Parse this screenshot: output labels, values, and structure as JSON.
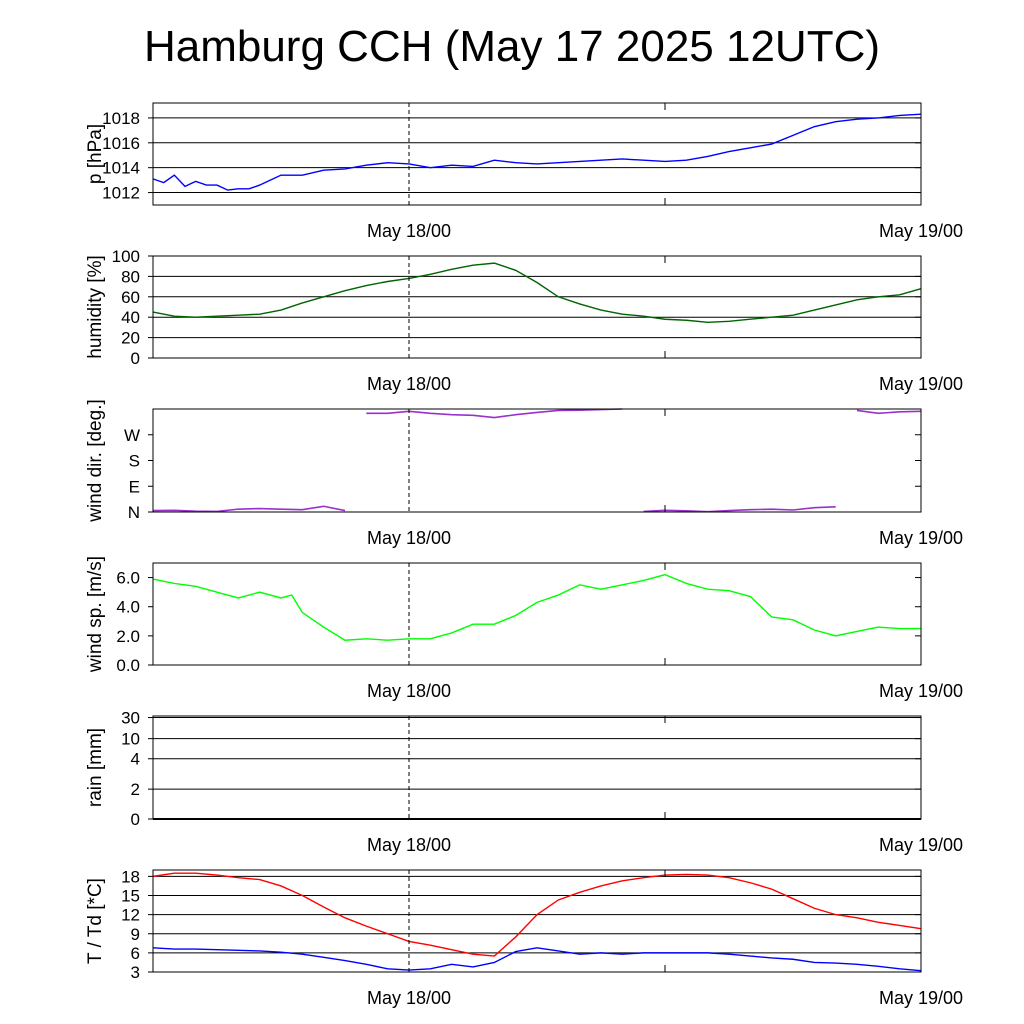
{
  "title": "Hamburg CCH (May 17 2025 12UTC)",
  "chart_data": [
    {
      "type": "line",
      "ylabel": "p [hPa]",
      "x_ticks": [
        "May 18/00",
        "May 19/00"
      ],
      "ylim": [
        1011,
        1019.2
      ],
      "y_ticks": [
        1012,
        1014,
        1016,
        1018
      ],
      "y_tick_labels": [
        "1012",
        "1014",
        "1016",
        "1018"
      ],
      "grid": "horizontal",
      "series": [
        {
          "color": "#0000ff",
          "x": [
            0,
            0.5,
            1,
            1.5,
            2,
            2.5,
            3,
            3.5,
            4,
            4.5,
            5,
            5.5,
            6,
            7,
            8,
            9,
            10,
            11,
            12,
            13,
            14,
            15,
            16,
            17,
            18,
            19,
            20,
            21,
            22,
            23,
            24,
            25,
            26,
            27,
            28,
            29,
            30,
            31,
            32,
            33,
            34,
            35,
            36
          ],
          "values": [
            1013.1,
            1012.8,
            1013.4,
            1012.5,
            1012.9,
            1012.6,
            1012.6,
            1012.2,
            1012.3,
            1012.3,
            1012.6,
            1013.0,
            1013.4,
            1013.4,
            1013.8,
            1013.9,
            1014.2,
            1014.4,
            1014.3,
            1014.0,
            1014.2,
            1014.1,
            1014.6,
            1014.4,
            1014.3,
            1014.4,
            1014.5,
            1014.6,
            1014.7,
            1014.6,
            1014.5,
            1014.6,
            1014.9,
            1015.3,
            1015.6,
            1015.9,
            1016.6,
            1017.3,
            1017.7,
            1017.9,
            1018.0,
            1018.2,
            1018.3
          ]
        }
      ]
    },
    {
      "type": "line",
      "ylabel": "humidity [%]",
      "x_ticks": [
        "May 18/00",
        "May 19/00"
      ],
      "ylim": [
        0,
        100
      ],
      "y_ticks": [
        0,
        20,
        40,
        60,
        80,
        100
      ],
      "y_tick_labels": [
        "0",
        "20",
        "40",
        "60",
        "80",
        "100"
      ],
      "grid": "horizontal",
      "series": [
        {
          "color": "#006400",
          "x": [
            0,
            1,
            2,
            3,
            4,
            5,
            6,
            7,
            8,
            9,
            10,
            11,
            12,
            13,
            14,
            15,
            16,
            17,
            18,
            19,
            20,
            21,
            22,
            23,
            24,
            25,
            26,
            27,
            28,
            29,
            30,
            31,
            32,
            33,
            34,
            35,
            36
          ],
          "values": [
            45,
            41,
            40,
            41,
            42,
            43,
            47,
            54,
            60,
            66,
            71,
            75,
            78,
            82,
            87,
            91,
            93,
            86,
            74,
            60,
            53,
            47,
            43,
            41,
            38,
            37,
            35,
            36,
            38,
            40,
            42,
            47,
            52,
            57,
            60,
            62,
            68
          ]
        }
      ]
    },
    {
      "type": "line",
      "ylabel": "wind dir. [deg.]",
      "x_ticks": [
        "May 18/00",
        "May 19/00"
      ],
      "ylim": [
        0,
        360
      ],
      "y_ticks": [
        0,
        90,
        180,
        270
      ],
      "y_tick_labels": [
        "N",
        "E",
        "S",
        "W"
      ],
      "grid": "none",
      "series": [
        {
          "color": "#9932cc",
          "x": [
            0,
            1,
            2,
            3,
            4,
            5,
            6,
            7,
            8,
            9,
            10,
            11,
            12,
            13,
            14,
            15,
            16,
            17,
            18,
            19,
            20,
            21,
            22,
            23,
            24,
            25,
            26,
            27,
            28,
            29,
            30,
            31,
            32,
            33,
            34,
            35,
            36
          ],
          "values": [
            5,
            6,
            3,
            2,
            10,
            12,
            10,
            8,
            20,
            5,
            345,
            345,
            352,
            345,
            340,
            338,
            330,
            340,
            348,
            355,
            356,
            358,
            360,
            2,
            6,
            4,
            1,
            5,
            8,
            10,
            7,
            15,
            18,
            355,
            345,
            350,
            352
          ]
        }
      ]
    },
    {
      "type": "line",
      "ylabel": "wind sp. [m/s]",
      "x_ticks": [
        "May 18/00",
        "May 19/00"
      ],
      "ylim": [
        0,
        7
      ],
      "y_ticks": [
        0,
        2,
        4,
        6
      ],
      "y_tick_labels": [
        "0.0",
        "2.0",
        "4.0",
        "6.0"
      ],
      "grid": "none",
      "series": [
        {
          "color": "#00ff00",
          "x": [
            0,
            1,
            2,
            3,
            4,
            5,
            6,
            6.5,
            7,
            8,
            9,
            10,
            11,
            12,
            13,
            14,
            15,
            16,
            17,
            18,
            19,
            20,
            21,
            22,
            23,
            24,
            25,
            26,
            27,
            28,
            29,
            30,
            31,
            32,
            33,
            34,
            35,
            36
          ],
          "values": [
            5.9,
            5.6,
            5.4,
            5.0,
            4.6,
            5.0,
            4.6,
            4.8,
            3.6,
            2.6,
            1.7,
            1.8,
            1.7,
            1.8,
            1.8,
            2.2,
            2.8,
            2.8,
            3.4,
            4.3,
            4.8,
            5.5,
            5.2,
            5.5,
            5.8,
            6.2,
            5.6,
            5.2,
            5.1,
            4.7,
            3.3,
            3.1,
            2.4,
            2.0,
            2.3,
            2.6,
            2.5,
            2.5
          ]
        }
      ]
    },
    {
      "type": "line",
      "ylabel": "rain [mm]",
      "x_ticks": [
        "May 18/00",
        "May 19/00"
      ],
      "y_ticks": [
        0,
        2,
        4,
        10,
        30
      ],
      "y_tick_labels": [
        "0",
        "2",
        "4",
        "10",
        "30"
      ],
      "grid": "horizontal",
      "series": [
        {
          "color": "#000000",
          "x": [
            0,
            36
          ],
          "values": [
            0,
            0
          ]
        }
      ]
    },
    {
      "type": "line",
      "ylabel": "T / Td [*C]",
      "x_ticks": [
        "May 18/00",
        "May 19/00"
      ],
      "ylim": [
        3,
        19
      ],
      "y_ticks": [
        3,
        6,
        9,
        12,
        15,
        18
      ],
      "y_tick_labels": [
        "3",
        "6",
        "9",
        "12",
        "15",
        "18"
      ],
      "grid": "horizontal",
      "series": [
        {
          "color": "#ff0000",
          "x": [
            0,
            1,
            2,
            3,
            4,
            5,
            6,
            7,
            8,
            9,
            10,
            11,
            12,
            13,
            14,
            15,
            16,
            17,
            18,
            19,
            20,
            21,
            22,
            23,
            24,
            25,
            26,
            27,
            28,
            29,
            30,
            31,
            32,
            33,
            34,
            35,
            36
          ],
          "values": [
            18.0,
            18.5,
            18.5,
            18.2,
            17.8,
            17.5,
            16.5,
            15.0,
            13.2,
            11.5,
            10.2,
            9.0,
            7.8,
            7.2,
            6.5,
            5.8,
            5.5,
            8.5,
            12.0,
            14.3,
            15.5,
            16.5,
            17.3,
            17.8,
            18.2,
            18.3,
            18.2,
            17.8,
            17.0,
            16.0,
            14.5,
            13.0,
            12.0,
            11.5,
            10.8,
            10.3,
            9.8
          ]
        },
        {
          "color": "#0000ff",
          "x": [
            0,
            1,
            2,
            3,
            4,
            5,
            6,
            7,
            8,
            9,
            10,
            11,
            12,
            13,
            14,
            15,
            16,
            17,
            18,
            19,
            20,
            21,
            22,
            23,
            24,
            25,
            26,
            27,
            28,
            29,
            30,
            31,
            32,
            33,
            34,
            35,
            36
          ],
          "values": [
            6.8,
            6.6,
            6.6,
            6.5,
            6.4,
            6.3,
            6.1,
            5.8,
            5.3,
            4.8,
            4.2,
            3.5,
            3.3,
            3.5,
            4.2,
            3.8,
            4.5,
            6.2,
            6.8,
            6.3,
            5.8,
            6.0,
            5.8,
            6.0,
            6.0,
            6.0,
            6.0,
            5.8,
            5.5,
            5.2,
            5.0,
            4.5,
            4.4,
            4.2,
            3.9,
            3.5,
            3.2
          ]
        }
      ]
    }
  ]
}
